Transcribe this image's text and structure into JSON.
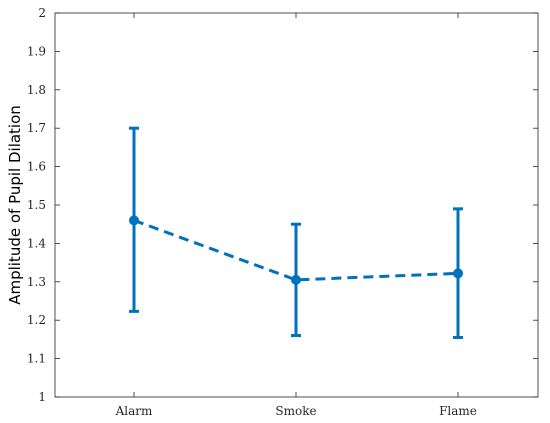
{
  "chart_data": {
    "type": "line",
    "title": "",
    "xlabel": "",
    "ylabel": "Amplitude of Pupil Dilation",
    "ylim": [
      1,
      2
    ],
    "yticks": [
      "1",
      "1.1",
      "1.2",
      "1.3",
      "1.4",
      "1.5",
      "1.6",
      "1.7",
      "1.8",
      "1.9",
      "2"
    ],
    "categories": [
      "Alarm",
      "Smoke",
      "Flame"
    ],
    "series": [
      {
        "values": [
          1.46,
          1.305,
          1.322
        ],
        "error_low": [
          1.223,
          1.16,
          1.155
        ],
        "error_high": [
          1.7,
          1.45,
          1.49
        ],
        "color": "#0072BD",
        "line_style": "dashed",
        "marker": "circle"
      }
    ],
    "grid": false,
    "legend": "none"
  }
}
